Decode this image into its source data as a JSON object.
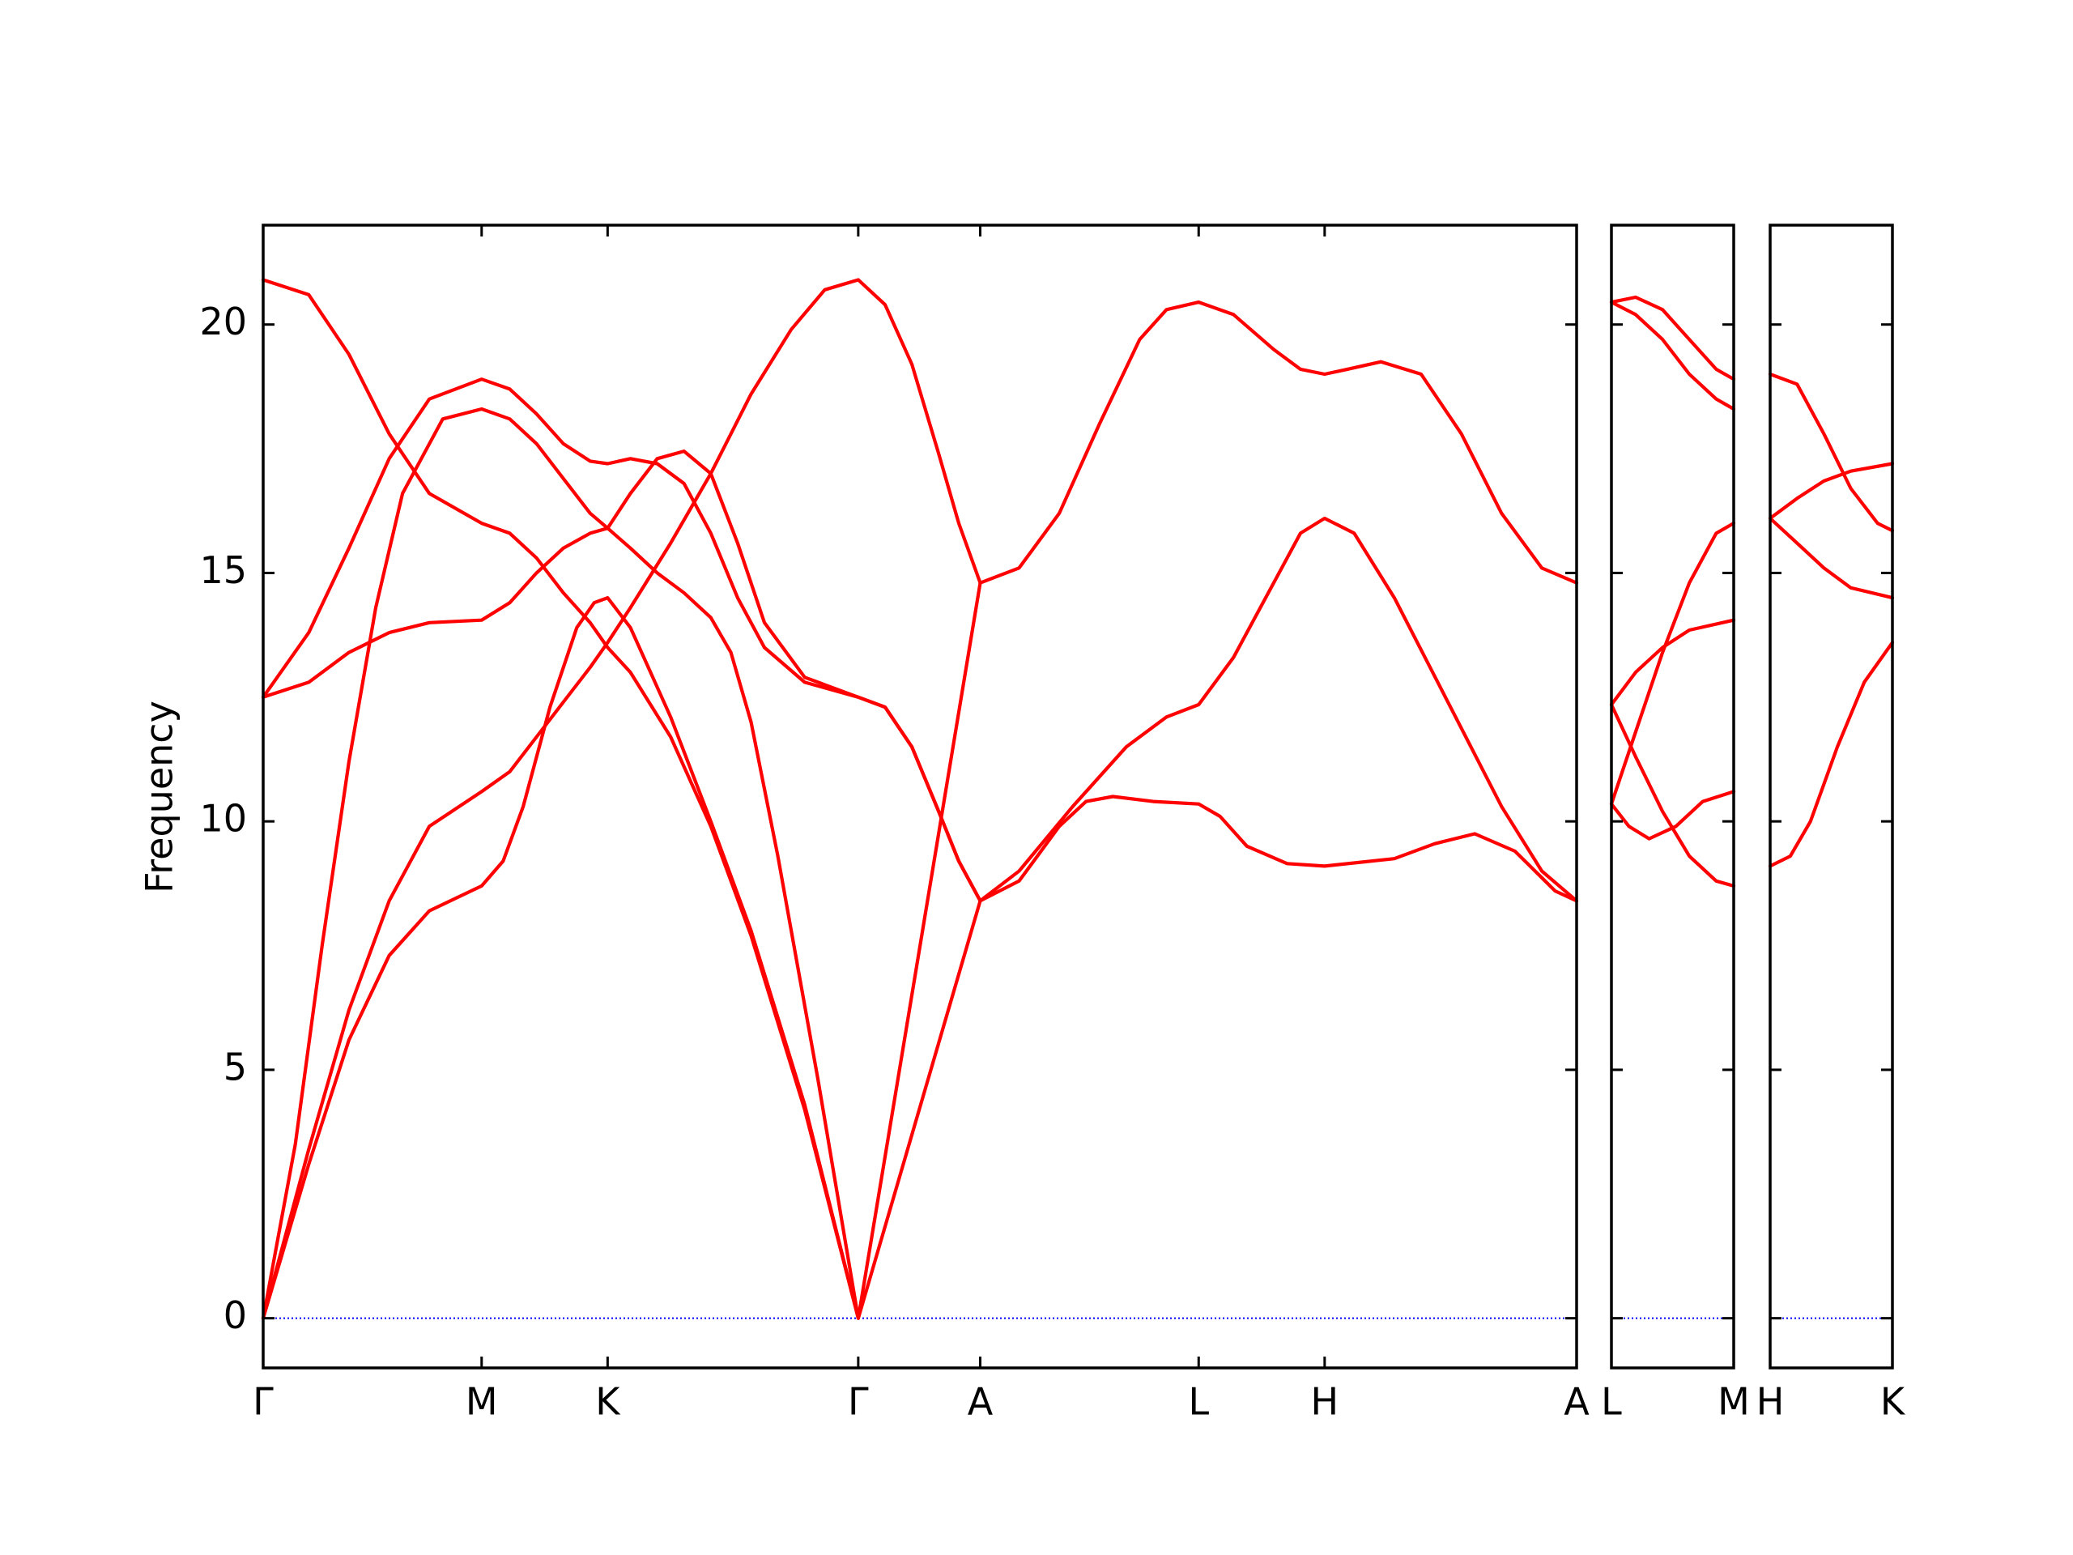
{
  "chart_data": [
    {
      "type": "line",
      "ylabel": "Frequency",
      "xlim": [
        0,
        9.8
      ],
      "ylim": [
        -1,
        22
      ],
      "yticks": [
        0,
        5,
        10,
        15,
        20
      ],
      "xticks": [
        {
          "value": 0,
          "label": "Γ"
        },
        {
          "value": 1.63,
          "label": "M"
        },
        {
          "value": 2.57,
          "label": "K"
        },
        {
          "value": 4.44,
          "label": "Γ"
        },
        {
          "value": 5.35,
          "label": "A"
        },
        {
          "value": 6.98,
          "label": "L"
        },
        {
          "value": 7.92,
          "label": "H"
        },
        {
          "value": 9.8,
          "label": "A"
        }
      ],
      "reference_line": {
        "value": 0,
        "color": "#0000ff"
      },
      "series": [
        {
          "color": "#ff0000",
          "x": [
            0,
            0.34,
            0.64,
            0.94,
            1.24,
            1.63,
            1.84,
            2.04,
            2.24,
            2.44,
            2.57,
            2.74,
            3.04,
            3.34,
            3.64,
            4.04,
            4.44,
            5.35,
            5.64,
            5.94,
            6.24,
            6.54,
            6.74,
            6.98,
            7.24,
            7.54,
            7.74,
            7.92,
            8.09,
            8.34,
            8.64,
            8.94,
            9.24,
            9.54,
            9.8
          ],
          "values": [
            20.9,
            20.6,
            19.4,
            17.8,
            16.6,
            16.0,
            15.8,
            15.3,
            14.6,
            14.0,
            13.5,
            13.0,
            11.7,
            9.9,
            7.7,
            4.2,
            0,
            14.8,
            15.1,
            16.2,
            18.0,
            19.7,
            20.3,
            20.45,
            20.2,
            19.5,
            19.1,
            19.0,
            19.1,
            19.25,
            19.0,
            17.8,
            16.2,
            15.1,
            14.8
          ]
        },
        {
          "color": "#ff0000",
          "x": [
            0,
            0.34,
            0.64,
            0.94,
            1.24,
            1.63,
            1.84,
            2.04,
            2.24,
            2.44,
            2.57,
            2.74,
            2.94,
            3.14,
            3.34,
            3.54,
            3.74,
            4.04,
            4.44,
            4.64,
            4.84,
            5.04,
            5.19,
            5.35,
            5.64,
            6.04,
            6.44,
            6.74,
            6.98,
            7.24,
            7.54,
            7.74,
            7.92,
            8.14,
            8.44,
            8.84,
            9.24,
            9.54,
            9.8
          ],
          "values": [
            12.5,
            13.8,
            15.5,
            17.3,
            18.5,
            18.9,
            18.7,
            18.2,
            17.6,
            17.25,
            17.2,
            17.3,
            17.2,
            16.8,
            15.8,
            14.5,
            13.5,
            12.8,
            12.5,
            12.3,
            11.5,
            10.2,
            9.2,
            8.4,
            9.0,
            10.3,
            11.5,
            12.1,
            12.35,
            13.3,
            14.8,
            15.8,
            16.1,
            15.8,
            14.5,
            12.4,
            10.3,
            9.0,
            8.4
          ]
        },
        {
          "color": "#ff0000",
          "x": [
            0,
            0.34,
            0.64,
            0.94,
            1.24,
            1.63,
            1.84,
            2.04,
            2.24,
            2.44,
            2.57,
            2.74,
            2.94,
            3.14,
            3.34,
            3.54,
            3.74,
            4.04,
            4.44,
            4.64,
            4.84,
            5.04,
            5.19,
            5.35,
            5.64,
            5.94,
            6.14,
            6.34,
            6.64,
            6.98,
            7.14,
            7.34,
            7.64,
            7.92,
            8.44,
            8.74,
            9.04,
            9.34,
            9.64,
            9.8
          ],
          "values": [
            12.5,
            12.8,
            13.4,
            13.8,
            14.0,
            14.05,
            14.4,
            15.0,
            15.5,
            15.8,
            15.9,
            16.6,
            17.3,
            17.45,
            17.0,
            15.6,
            14.0,
            12.9,
            12.5,
            12.3,
            11.5,
            10.2,
            9.2,
            8.4,
            8.8,
            9.9,
            10.4,
            10.5,
            10.4,
            10.35,
            10.1,
            9.5,
            9.15,
            9.1,
            9.25,
            9.55,
            9.75,
            9.4,
            8.6,
            8.4
          ]
        },
        {
          "color": "#ff0000",
          "x": [
            0,
            0.24,
            0.44,
            0.64,
            0.84,
            1.04,
            1.34,
            1.63,
            1.84,
            2.04,
            2.24,
            2.44,
            2.57,
            2.74,
            2.94,
            3.14,
            3.34,
            3.49,
            3.64,
            3.84,
            4.14,
            4.44,
            5.35
          ],
          "values": [
            0,
            3.5,
            7.5,
            11.2,
            14.3,
            16.6,
            18.1,
            18.3,
            18.1,
            17.6,
            16.9,
            16.2,
            15.9,
            15.5,
            15.0,
            14.6,
            14.1,
            13.4,
            12.0,
            9.3,
            4.8,
            0,
            8.4
          ]
        },
        {
          "color": "#ff0000",
          "x": [
            0,
            0.34,
            0.64,
            0.94,
            1.24,
            1.63,
            1.84,
            2.04,
            2.24,
            2.44,
            2.57,
            2.74,
            3.04,
            3.34,
            3.64,
            3.94,
            4.19,
            4.44,
            4.64,
            4.84,
            5.04,
            5.19,
            5.35
          ],
          "values": [
            0,
            3.4,
            6.2,
            8.4,
            9.9,
            10.6,
            11.0,
            11.7,
            12.4,
            13.1,
            13.6,
            14.3,
            15.6,
            17.0,
            18.6,
            19.9,
            20.7,
            20.9,
            20.4,
            19.2,
            17.4,
            16.0,
            14.8
          ]
        },
        {
          "color": "#ff0000",
          "x": [
            0,
            0.34,
            0.64,
            0.94,
            1.24,
            1.63,
            1.79,
            1.94,
            2.14,
            2.34,
            2.47,
            2.57,
            2.74,
            3.04,
            3.34,
            3.64,
            4.04,
            4.44
          ],
          "values": [
            0,
            3.1,
            5.6,
            7.3,
            8.2,
            8.7,
            9.2,
            10.3,
            12.3,
            13.9,
            14.4,
            14.5,
            13.9,
            12.1,
            10.0,
            7.8,
            4.3,
            0
          ]
        }
      ]
    },
    {
      "type": "line",
      "xlim": [
        0,
        0.91
      ],
      "ylim": [
        -1,
        22
      ],
      "sharey": true,
      "xticks": [
        {
          "value": 0,
          "label": "L"
        },
        {
          "value": 0.91,
          "label": "M"
        }
      ],
      "reference_line": {
        "value": 0,
        "color": "#0000ff"
      },
      "series": [
        {
          "color": "#ff0000",
          "x": [
            0,
            0.18,
            0.38,
            0.58,
            0.78,
            0.91
          ],
          "values": [
            20.45,
            20.55,
            20.3,
            19.7,
            19.1,
            18.9
          ]
        },
        {
          "color": "#ff0000",
          "x": [
            0,
            0.18,
            0.38,
            0.58,
            0.78,
            0.91
          ],
          "values": [
            20.45,
            20.2,
            19.7,
            19.0,
            18.5,
            18.3
          ]
        },
        {
          "color": "#ff0000",
          "x": [
            0,
            0.18,
            0.38,
            0.58,
            0.91
          ],
          "values": [
            12.35,
            13.0,
            13.5,
            13.85,
            14.05
          ]
        },
        {
          "color": "#ff0000",
          "x": [
            0,
            0.18,
            0.38,
            0.58,
            0.78,
            0.91
          ],
          "values": [
            12.35,
            11.3,
            10.2,
            9.3,
            8.8,
            8.7
          ]
        },
        {
          "color": "#ff0000",
          "x": [
            0,
            0.18,
            0.38,
            0.58,
            0.78,
            0.91
          ],
          "values": [
            10.35,
            11.8,
            13.4,
            14.8,
            15.8,
            16.0
          ]
        },
        {
          "color": "#ff0000",
          "x": [
            0,
            0.13,
            0.28,
            0.48,
            0.68,
            0.91
          ],
          "values": [
            10.35,
            9.9,
            9.65,
            9.9,
            10.4,
            10.6
          ]
        }
      ]
    },
    {
      "type": "line",
      "xlim": [
        0,
        0.91
      ],
      "ylim": [
        -1,
        22
      ],
      "sharey": true,
      "xticks": [
        {
          "value": 0,
          "label": "H"
        },
        {
          "value": 0.91,
          "label": "K"
        }
      ],
      "reference_line": {
        "value": 0,
        "color": "#0000ff"
      },
      "series": [
        {
          "color": "#ff0000",
          "x": [
            0,
            0.2,
            0.4,
            0.6,
            0.8,
            0.91
          ],
          "values": [
            19.0,
            18.8,
            17.8,
            16.7,
            16.0,
            15.85
          ]
        },
        {
          "color": "#ff0000",
          "x": [
            0,
            0.2,
            0.4,
            0.6,
            0.91
          ],
          "values": [
            16.1,
            16.5,
            16.85,
            17.05,
            17.2
          ]
        },
        {
          "color": "#ff0000",
          "x": [
            0,
            0.2,
            0.4,
            0.6,
            0.91
          ],
          "values": [
            16.1,
            15.6,
            15.1,
            14.7,
            14.5
          ]
        },
        {
          "color": "#ff0000",
          "x": [
            0,
            0.15,
            0.3,
            0.5,
            0.7,
            0.91
          ],
          "values": [
            9.1,
            9.3,
            10.0,
            11.5,
            12.8,
            13.6
          ]
        }
      ]
    }
  ]
}
